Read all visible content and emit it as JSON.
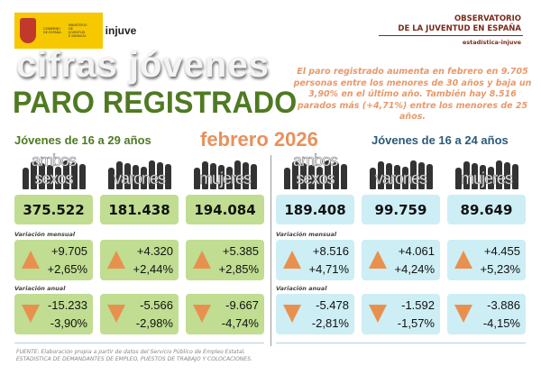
{
  "header": {
    "logo_gov": "GOBIERNO DE ESPAÑA",
    "logo_min": "MINISTERIO DE JUVENTUD E INFANCIA",
    "logo_injuve": "injuve",
    "obs_line1": "OBSERVATORIO",
    "obs_line2": "DE LA JUVENTUD EN ESPAÑA",
    "obs_sub": "estadística-injuve"
  },
  "title": {
    "brand": "cifras jóvenes",
    "main": "PARO REGISTRADO"
  },
  "summary": "El paro registrado aumenta en febrero en 9.705 personas entre los menores de 30 años y baja un 3,90% en el último año. También hay 8.516 parados más (+4,71%) entre los menores de 25 años.",
  "period": "febrero 2026",
  "labels": {
    "monthly": "Variación mensual",
    "annual": "Variación anual"
  },
  "colors": {
    "green_card": "#c0dd92",
    "blue_card": "#cdeef4",
    "arrow": "#e8914f",
    "green_title": "#4f7a22",
    "blue_title": "#2a5a7a"
  },
  "groups": [
    {
      "title": "Jóvenes de 16 a 29 años",
      "cols": [
        {
          "label": "ambos sexos",
          "total": "375.522",
          "m_abs": "+9.705",
          "m_pct": "+2,65%",
          "a_abs": "-15.233",
          "a_pct": "-3,90%"
        },
        {
          "label": "varones",
          "total": "181.438",
          "m_abs": "+4.320",
          "m_pct": "+2,44%",
          "a_abs": "-5.566",
          "a_pct": "-2,98%"
        },
        {
          "label": "mujeres",
          "total": "194.084",
          "m_abs": "+5.385",
          "m_pct": "+2,85%",
          "a_abs": "-9.667",
          "a_pct": "-4,74%"
        }
      ]
    },
    {
      "title": "Jóvenes de 16 a 24 años",
      "cols": [
        {
          "label": "ambos sexos",
          "total": "189.408",
          "m_abs": "+8.516",
          "m_pct": "+4,71%",
          "a_abs": "-5.478",
          "a_pct": "-2,81%"
        },
        {
          "label": "varones",
          "total": "99.759",
          "m_abs": "+4.061",
          "m_pct": "+4,24%",
          "a_abs": "-1.592",
          "a_pct": "-1,57%"
        },
        {
          "label": "mujeres",
          "total": "89.649",
          "m_abs": "+4.455",
          "m_pct": "+5,23%",
          "a_abs": "-3.886",
          "a_pct": "-4,15%"
        }
      ]
    }
  ],
  "footer": {
    "line1": "FUENTE: Elaboración propia a partir de datos del Servicio Público de Empleo Estatal,",
    "line2": "ESTADISTICA DE DEMANDANTES DE EMPLEO, PUESTOS DE TRABAJO Y COLOCACIONES."
  }
}
